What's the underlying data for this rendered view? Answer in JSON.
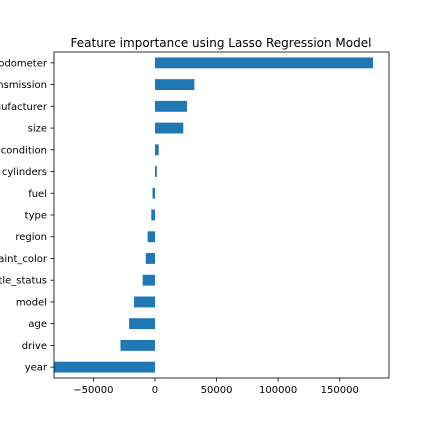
{
  "chart_data": {
    "type": "bar",
    "orientation": "horizontal",
    "title": "Feature importance using Lasso Regression Model",
    "xlabel": "",
    "ylabel": "",
    "xlim": [
      -82000,
      190000
    ],
    "xticks": [
      -50000,
      0,
      50000,
      100000,
      150000
    ],
    "xtick_labels": [
      "−50000",
      "0",
      "50000",
      "100000",
      "150000"
    ],
    "grid": false,
    "bar_color": "#1f77b4",
    "categories": [
      "odometer",
      "transmission",
      "manufacturer",
      "size",
      "condition",
      "cylinders",
      "fuel",
      "type",
      "region",
      "paint_color",
      "title_status",
      "model",
      "age",
      "drive",
      "year"
    ],
    "values": [
      177000,
      32000,
      26000,
      23000,
      3000,
      1500,
      -2000,
      -3000,
      -6000,
      -7500,
      -10000,
      -17000,
      -21000,
      -28000,
      -82000
    ]
  }
}
